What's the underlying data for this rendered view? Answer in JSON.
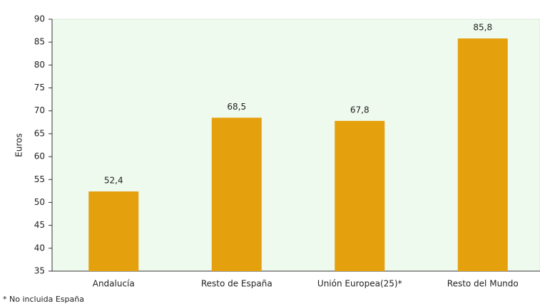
{
  "chart_data": {
    "type": "bar",
    "categories": [
      "Andalucía",
      "Resto de España",
      "Unión Europea(25)*",
      "Resto del Mundo"
    ],
    "values": [
      52.4,
      68.5,
      67.8,
      85.8
    ],
    "value_labels": [
      "52,4",
      "68,5",
      "67,8",
      "85,8"
    ],
    "color": "#e5a00d",
    "ylabel": "Euros",
    "ylim": [
      35,
      90
    ],
    "yticks": [
      35,
      40,
      45,
      50,
      55,
      60,
      65,
      70,
      75,
      80,
      85,
      90
    ],
    "footnote": "* No incluida España"
  }
}
